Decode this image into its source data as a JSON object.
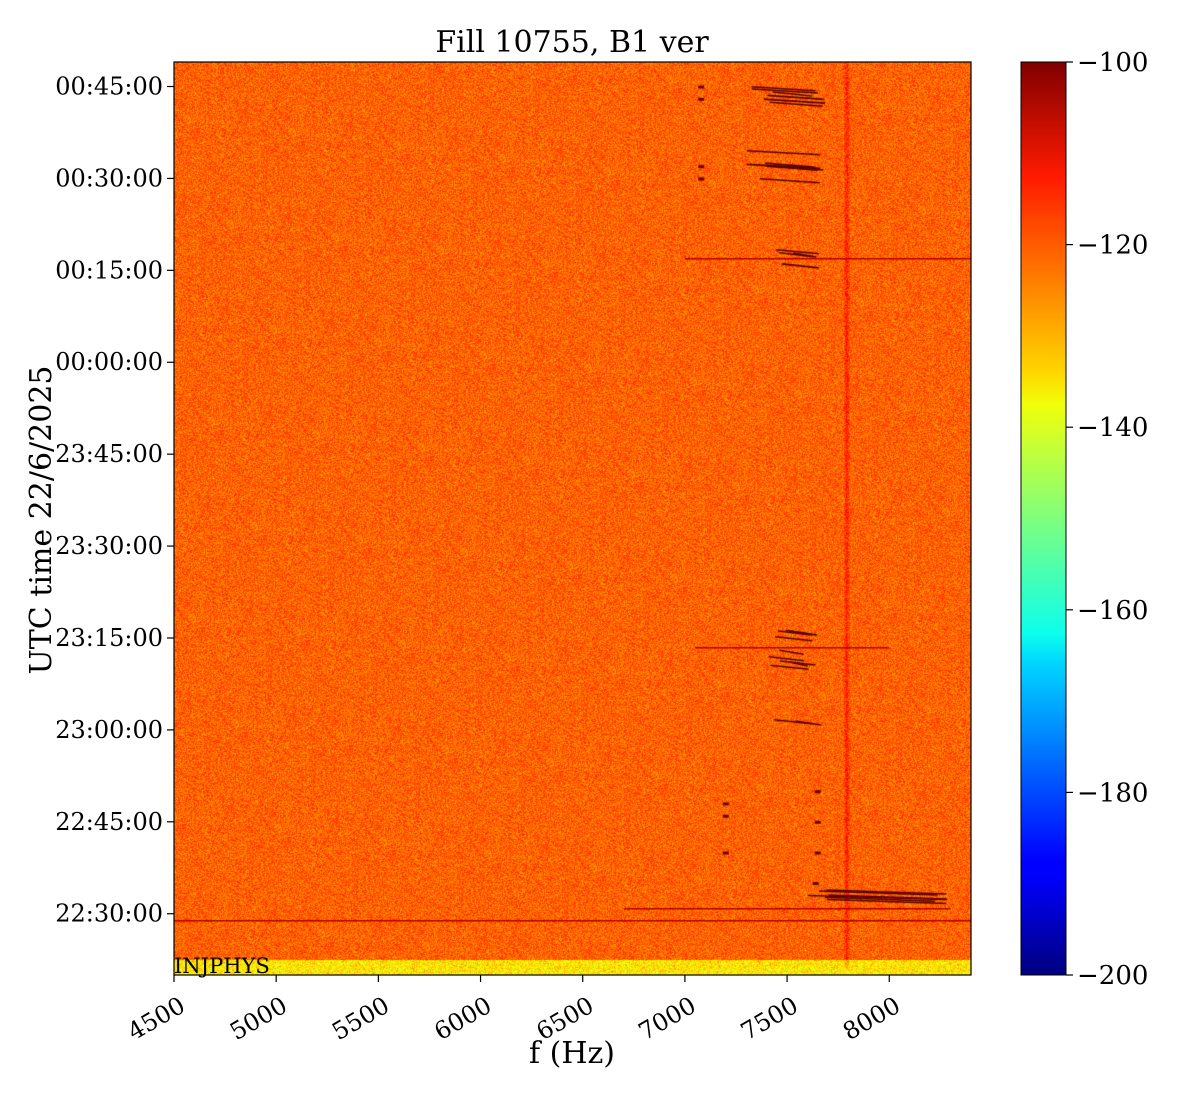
{
  "chart_data": {
    "type": "heatmap",
    "title": "Fill 10755, B1 ver",
    "xlabel": "f (Hz)",
    "ylabel": "UTC time 22/6/2025",
    "xlim": [
      4500,
      8400
    ],
    "x_ticks": [
      4500,
      5000,
      5500,
      6000,
      6500,
      7000,
      7500,
      8000
    ],
    "x_tick_labels": [
      "4500",
      "5000",
      "5500",
      "6000",
      "6500",
      "7000",
      "7500",
      "8000"
    ],
    "ylim_minutes_from_22_00": [
      20,
      169
    ],
    "y_tick_labels": [
      "22:30:00",
      "22:45:00",
      "23:00:00",
      "23:15:00",
      "23:30:00",
      "23:45:00",
      "00:00:00",
      "00:15:00",
      "00:30:00",
      "00:45:00"
    ],
    "y_tick_minutes": [
      30,
      45,
      60,
      75,
      90,
      105,
      120,
      135,
      150,
      165
    ],
    "annotation": "INJPHYS",
    "colorbar": {
      "colormap": "jet",
      "range": [
        -200,
        -100
      ],
      "ticks": [
        -100,
        -120,
        -140,
        -160,
        -180,
        -200
      ],
      "tick_labels": [
        "−100",
        "−120",
        "−140",
        "−160",
        "−180",
        "−200"
      ]
    },
    "background_level": -122,
    "features": [
      {
        "kind": "vertical_line",
        "f": 7790,
        "t_range": [
          21,
          169
        ],
        "level": -112
      },
      {
        "kind": "horizontal_line",
        "t": 137,
        "f_range": [
          7000,
          8400
        ],
        "level": -110
      },
      {
        "kind": "horizontal_line",
        "t": 29,
        "f_range": [
          4500,
          8400
        ],
        "level": -112
      },
      {
        "kind": "horizontal_line",
        "t": 31,
        "f_range": [
          6700,
          8300
        ],
        "level": -110
      },
      {
        "kind": "horizontal_line",
        "t": 73.5,
        "f_range": [
          7050,
          8000
        ],
        "level": -112
      }
    ]
  }
}
